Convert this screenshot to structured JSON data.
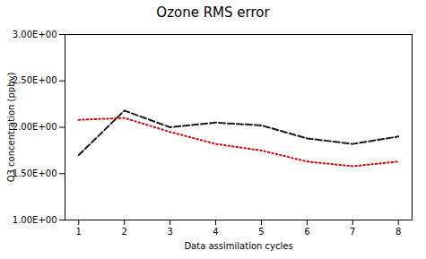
{
  "chart_data": {
    "type": "line",
    "title": "Ozone RMS error",
    "xlabel": "Data assimilation cycles",
    "ylabel": "O3 concentration (ppbv)",
    "x": [
      1,
      2,
      3,
      4,
      5,
      6,
      7,
      8
    ],
    "series": [
      {
        "color": "#1a1a1a",
        "line_style": "dashed",
        "values": [
          1.7,
          2.18,
          2.0,
          2.05,
          2.02,
          1.88,
          1.82,
          1.9
        ]
      },
      {
        "color": "#dd0000",
        "line_style": "dotted",
        "values": [
          2.08,
          2.1,
          1.95,
          1.82,
          1.75,
          1.63,
          1.58,
          1.63
        ]
      }
    ],
    "xlim": [
      0.7,
      8.3
    ],
    "xticks": [
      1,
      2,
      3,
      4,
      5,
      6,
      7,
      8
    ],
    "ylim": [
      1.0,
      3.0
    ],
    "yticks": [
      {
        "value": 1.0,
        "label": "1.00E+00"
      },
      {
        "value": 1.5,
        "label": "1.50E+00"
      },
      {
        "value": 2.0,
        "label": "2.00E+00"
      },
      {
        "value": 2.5,
        "label": "2.50E+00"
      },
      {
        "value": 3.0,
        "label": "3.00E+00"
      }
    ],
    "grid": false
  }
}
